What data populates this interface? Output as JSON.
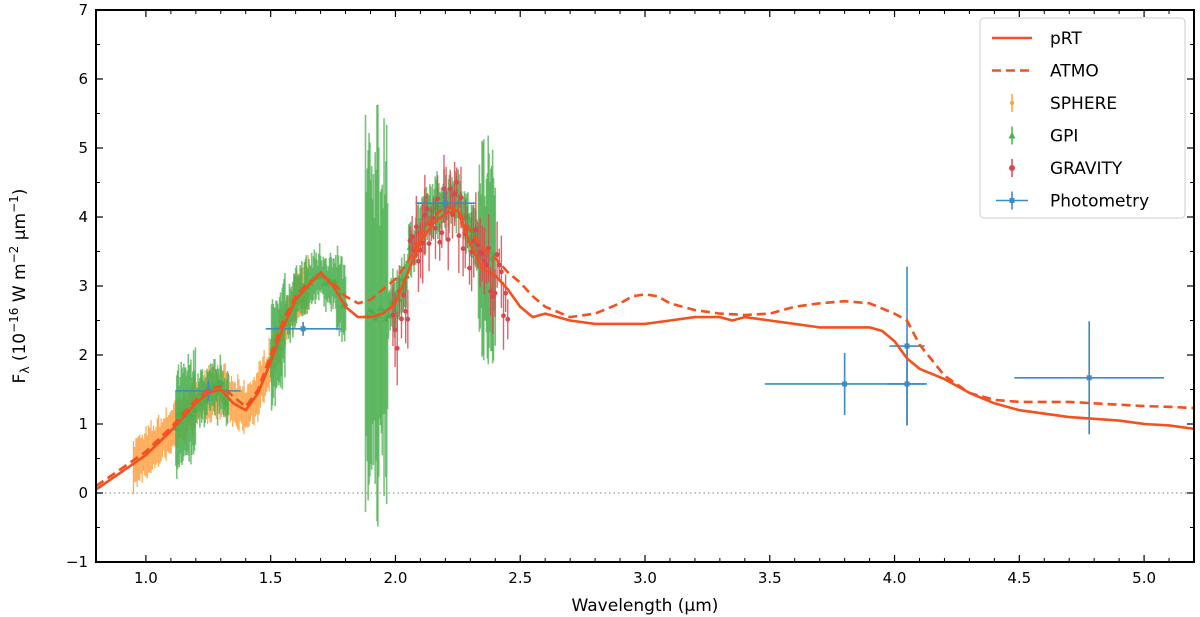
{
  "chart_data": {
    "type": "line",
    "xlabel": "Wavelength (μm)",
    "ylabel": {
      "base": "F",
      "sub": "λ",
      "units_prefix": " (10",
      "exp1": "−16",
      "mid1": " W m",
      "exp2": "−2",
      "mid2": " μm",
      "exp3": "−1",
      "end": ")"
    },
    "xlim": [
      0.8,
      5.2
    ],
    "ylim": [
      -1,
      7
    ],
    "xticks": [
      1.0,
      1.5,
      2.0,
      2.5,
      3.0,
      3.5,
      4.0,
      4.5,
      5.0
    ],
    "xtick_labels": [
      "1.0",
      "1.5",
      "2.0",
      "2.5",
      "3.0",
      "3.5",
      "4.0",
      "4.5",
      "5.0"
    ],
    "yticks": [
      -1,
      0,
      1,
      2,
      3,
      4,
      5,
      6,
      7
    ],
    "ytick_labels": [
      "−1",
      "0",
      "1",
      "2",
      "3",
      "4",
      "5",
      "6",
      "7"
    ],
    "zero_line": true,
    "legend_position": "top-right",
    "colors": {
      "model": "#f4511e",
      "sphere": "#ff9e3d",
      "gpi": "#4caf50",
      "gravity": "#d9474f",
      "photometry": "#3d8bc2",
      "zero": "#999999"
    },
    "legend": [
      {
        "label": "pRT",
        "kind": "solid"
      },
      {
        "label": "ATMO",
        "kind": "dashed"
      },
      {
        "label": "SPHERE",
        "kind": "sphere"
      },
      {
        "label": "GPI",
        "kind": "gpi"
      },
      {
        "label": "GRAVITY",
        "kind": "gravity"
      },
      {
        "label": "Photometry",
        "kind": "photometry"
      }
    ],
    "series": [
      {
        "name": "pRT",
        "style": "solid",
        "x": [
          0.8,
          0.9,
          1.0,
          1.1,
          1.15,
          1.2,
          1.25,
          1.3,
          1.35,
          1.4,
          1.45,
          1.5,
          1.55,
          1.6,
          1.65,
          1.7,
          1.75,
          1.8,
          1.85,
          1.9,
          1.95,
          2.0,
          2.05,
          2.1,
          2.15,
          2.2,
          2.25,
          2.3,
          2.35,
          2.4,
          2.45,
          2.5,
          2.55,
          2.6,
          2.7,
          2.8,
          2.9,
          3.0,
          3.1,
          3.2,
          3.3,
          3.35,
          3.4,
          3.5,
          3.6,
          3.7,
          3.8,
          3.9,
          3.95,
          4.0,
          4.05,
          4.1,
          4.2,
          4.3,
          4.4,
          4.5,
          4.7,
          4.9,
          5.0,
          5.1,
          5.2
        ],
        "y": [
          0.05,
          0.3,
          0.55,
          0.9,
          1.1,
          1.3,
          1.45,
          1.5,
          1.3,
          1.2,
          1.45,
          1.9,
          2.4,
          2.8,
          3.0,
          3.2,
          3.0,
          2.7,
          2.55,
          2.55,
          2.6,
          2.75,
          3.2,
          3.65,
          3.9,
          4.05,
          4.1,
          3.6,
          3.25,
          3.15,
          2.95,
          2.7,
          2.55,
          2.6,
          2.5,
          2.45,
          2.45,
          2.45,
          2.5,
          2.55,
          2.55,
          2.5,
          2.55,
          2.5,
          2.45,
          2.4,
          2.4,
          2.4,
          2.35,
          2.2,
          1.95,
          1.8,
          1.65,
          1.45,
          1.3,
          1.2,
          1.1,
          1.05,
          1.0,
          0.98,
          0.93
        ]
      },
      {
        "name": "ATMO",
        "style": "dashed",
        "x": [
          0.8,
          0.9,
          1.0,
          1.1,
          1.15,
          1.2,
          1.25,
          1.3,
          1.35,
          1.4,
          1.45,
          1.5,
          1.55,
          1.6,
          1.65,
          1.7,
          1.75,
          1.8,
          1.85,
          1.9,
          1.95,
          2.0,
          2.05,
          2.1,
          2.15,
          2.2,
          2.25,
          2.3,
          2.35,
          2.4,
          2.45,
          2.5,
          2.55,
          2.6,
          2.7,
          2.8,
          2.9,
          2.95,
          3.0,
          3.05,
          3.1,
          3.2,
          3.3,
          3.4,
          3.5,
          3.6,
          3.7,
          3.8,
          3.9,
          4.0,
          4.05,
          4.1,
          4.2,
          4.3,
          4.4,
          4.5,
          4.7,
          4.9,
          5.0,
          5.1,
          5.2
        ],
        "y": [
          0.1,
          0.35,
          0.6,
          0.95,
          1.15,
          1.35,
          1.5,
          1.55,
          1.4,
          1.25,
          1.5,
          2.0,
          2.5,
          2.85,
          3.05,
          3.15,
          3.05,
          2.85,
          2.75,
          2.8,
          2.95,
          3.1,
          3.35,
          3.75,
          4.0,
          4.15,
          4.1,
          3.8,
          3.55,
          3.4,
          3.2,
          3.05,
          2.85,
          2.7,
          2.55,
          2.6,
          2.75,
          2.85,
          2.88,
          2.85,
          2.75,
          2.65,
          2.6,
          2.58,
          2.6,
          2.7,
          2.75,
          2.78,
          2.75,
          2.6,
          2.5,
          2.15,
          1.7,
          1.45,
          1.35,
          1.32,
          1.32,
          1.28,
          1.26,
          1.25,
          1.23
        ]
      }
    ],
    "photometry": [
      {
        "x": 1.25,
        "xerr": 0.13,
        "y": 1.48,
        "yerr": 0.15
      },
      {
        "x": 1.63,
        "xerr": 0.15,
        "y": 2.38,
        "yerr": 0.1
      },
      {
        "x": 2.2,
        "xerr": 0.12,
        "y": 4.2,
        "yerr": 0.2
      },
      {
        "x": 3.8,
        "xerr": 0.32,
        "y": 1.58,
        "yerr": 0.45
      },
      {
        "x": 4.05,
        "xerr": 0.07,
        "y": 2.13,
        "yerr": 1.15
      },
      {
        "x": 4.05,
        "xerr": 0.08,
        "y": 1.58,
        "yerr": 0.6
      },
      {
        "x": 4.78,
        "xerr": 0.3,
        "y": 1.67,
        "yerr": 0.82
      }
    ],
    "sphere": {
      "x_range": [
        0.95,
        1.65
      ],
      "n": 140,
      "profile": "sphere"
    },
    "gpi": {
      "segments": [
        [
          1.12,
          1.33
        ],
        [
          1.5,
          1.8
        ],
        [
          1.88,
          2.4
        ]
      ],
      "n": 230,
      "profile": "gpi"
    },
    "gravity": {
      "x_range": [
        1.99,
        2.45
      ],
      "n": 55,
      "profile": "gravity"
    }
  }
}
